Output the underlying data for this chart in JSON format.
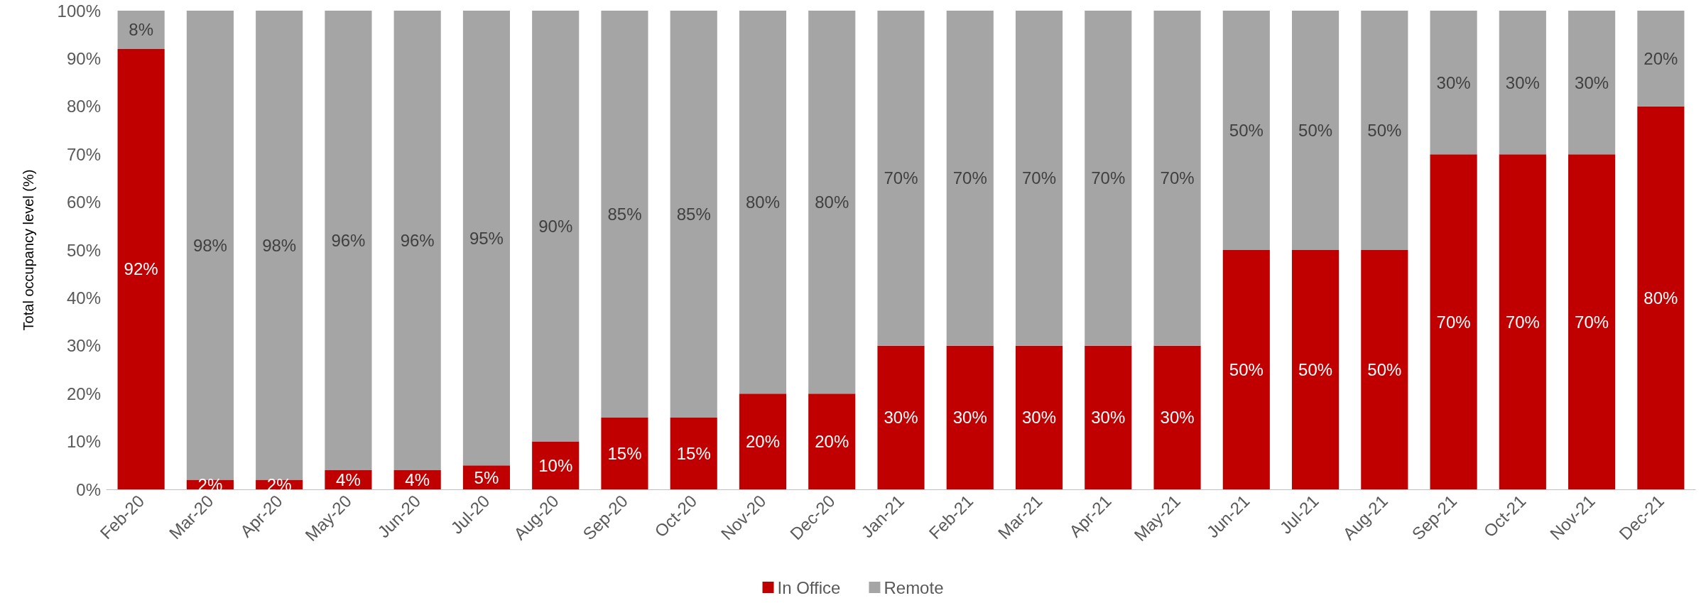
{
  "chart_data": {
    "type": "bar",
    "stacked": true,
    "ylabel": "Total occupancy level (%)",
    "legend": "bottom",
    "grid": false,
    "categories": [
      "Feb-20",
      "Mar-20",
      "Apr-20",
      "May-20",
      "Jun-20",
      "Jul-20",
      "Aug-20",
      "Sep-20",
      "Oct-20",
      "Nov-20",
      "Dec-20",
      "Jan-21",
      "Feb-21",
      "Mar-21",
      "Apr-21",
      "May-21",
      "Jun-21",
      "Jul-21",
      "Aug-21",
      "Sep-21",
      "Oct-21",
      "Nov-21",
      "Dec-21"
    ],
    "ylim": [
      0,
      100
    ],
    "yticks": [
      {
        "value": 0,
        "label": "0%"
      },
      {
        "value": 10,
        "label": "10%"
      },
      {
        "value": 20,
        "label": "20%"
      },
      {
        "value": 30,
        "label": "30%"
      },
      {
        "value": 40,
        "label": "40%"
      },
      {
        "value": 50,
        "label": "50%"
      },
      {
        "value": 60,
        "label": "60%"
      },
      {
        "value": 70,
        "label": "70%"
      },
      {
        "value": 80,
        "label": "80%"
      },
      {
        "value": 90,
        "label": "90%"
      },
      {
        "value": 100,
        "label": "100%"
      }
    ],
    "series": [
      {
        "name": "In Office",
        "color": "#c00000",
        "values": [
          92,
          2,
          2,
          4,
          4,
          5,
          10,
          15,
          15,
          20,
          20,
          30,
          30,
          30,
          30,
          30,
          50,
          50,
          50,
          70,
          70,
          70,
          80
        ],
        "value_labels": [
          "92%",
          "2%",
          "2%",
          "4%",
          "4%",
          "5%",
          "10%",
          "15%",
          "15%",
          "20%",
          "20%",
          "30%",
          "30%",
          "30%",
          "30%",
          "30%",
          "50%",
          "50%",
          "50%",
          "70%",
          "70%",
          "70%",
          "80%"
        ]
      },
      {
        "name": "Remote",
        "color": "#a5a5a5",
        "values": [
          8,
          98,
          98,
          96,
          96,
          95,
          90,
          85,
          85,
          80,
          80,
          70,
          70,
          70,
          70,
          70,
          50,
          50,
          50,
          30,
          30,
          30,
          20
        ],
        "value_labels": [
          "8%",
          "98%",
          "98%",
          "96%",
          "96%",
          "95%",
          "90%",
          "85%",
          "85%",
          "80%",
          "80%",
          "70%",
          "70%",
          "70%",
          "70%",
          "70%",
          "50%",
          "50%",
          "50%",
          "30%",
          "30%",
          "30%",
          "20%"
        ]
      }
    ]
  }
}
